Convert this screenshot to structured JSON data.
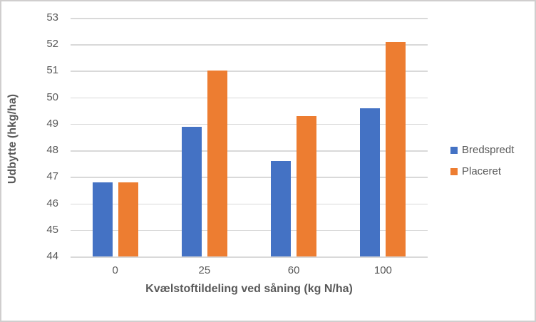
{
  "chart_data": {
    "type": "bar",
    "title": "",
    "xlabel": "Kvælstoftildeling ved såning (kg N/ha)",
    "ylabel": "Udbytte (hkg/ha)",
    "categories": [
      "0",
      "25",
      "60",
      "100"
    ],
    "series": [
      {
        "name": "Bredspredt",
        "color": "#4472C4",
        "values": [
          46.8,
          48.9,
          47.6,
          49.6
        ]
      },
      {
        "name": "Placeret",
        "color": "#ED7D31",
        "values": [
          46.8,
          51.0,
          49.3,
          52.1
        ]
      }
    ],
    "ylim": [
      44,
      53
    ],
    "ytick_step": 1,
    "grid": "horizontal",
    "legend_position": "right"
  },
  "colors": {
    "text": "#595959",
    "gridline": "#D9D9D9",
    "axis_line": "#D9D9D9",
    "border": "#D0CECE",
    "background": "#FFFFFF"
  }
}
